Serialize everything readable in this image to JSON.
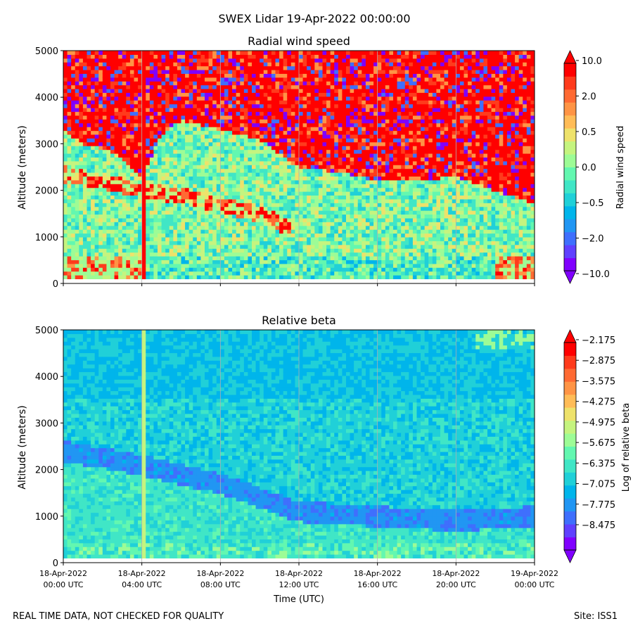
{
  "suptitle": "SWEX Lidar 19-Apr-2022 00:00:00",
  "footer_left": "REAL TIME DATA, NOT CHECKED FOR QUALITY",
  "footer_right": "Site: ISS1",
  "colors": {
    "rainbow": [
      "#8000ff",
      "#6040ff",
      "#3f6ffd",
      "#2196f3",
      "#00b5eb",
      "#20d0d8",
      "#40e6c6",
      "#63f7b0",
      "#9dfc96",
      "#c5f47f",
      "#eee26b",
      "#ffbc57",
      "#ff9445",
      "#ff6a33",
      "#ff3b1c",
      "#ff0000"
    ],
    "gridline": "#b0b0b0"
  },
  "chart_data": [
    {
      "type": "heatmap",
      "title": "Radial wind speed",
      "xlabel": "",
      "ylabel": "Altitude (meters)",
      "ylim": [
        0,
        5000
      ],
      "yticks": [
        "0",
        "1000",
        "2000",
        "3000",
        "4000",
        "5000"
      ],
      "xlim_hours": [
        0,
        24
      ],
      "xtick_hours": [
        0,
        4,
        8,
        12,
        16,
        20,
        24
      ],
      "xtick_labels_shown": false,
      "data_altitude_range": [
        100,
        5000
      ],
      "colorbar": {
        "label": "Radial wind speed",
        "tick_labels": [
          "10.0",
          "2.0",
          "0.5",
          "0.0",
          "−0.5",
          "−2.0",
          "−10.0"
        ],
        "extend": "both"
      },
      "features": {
        "cloud_base_profile": [
          {
            "hour": 0,
            "altitude": 3300
          },
          {
            "hour": 1,
            "altitude": 3000
          },
          {
            "hour": 2,
            "altitude": 2900
          },
          {
            "hour": 3,
            "altitude": 2700
          },
          {
            "hour": 4,
            "altitude": 2300
          },
          {
            "hour": 5,
            "altitude": 3200
          },
          {
            "hour": 6,
            "altitude": 3500
          },
          {
            "hour": 8,
            "altitude": 3300
          },
          {
            "hour": 10,
            "altitude": 3100
          },
          {
            "hour": 12,
            "altitude": 2500
          },
          {
            "hour": 14,
            "altitude": 2400
          },
          {
            "hour": 16,
            "altitude": 2200
          },
          {
            "hour": 18,
            "altitude": 2200
          },
          {
            "hour": 20,
            "altitude": 2300
          },
          {
            "hour": 22,
            "altitude": 2000
          },
          {
            "hour": 24,
            "altitude": 1700
          }
        ],
        "descending_layer": [
          {
            "hour": 0,
            "altitude": 2350
          },
          {
            "hour": 2,
            "altitude": 2200
          },
          {
            "hour": 4,
            "altitude": 2000
          },
          {
            "hour": 6,
            "altitude": 1900
          },
          {
            "hour": 8,
            "altitude": 1700
          },
          {
            "hour": 10,
            "altitude": 1500
          },
          {
            "hour": 11.5,
            "altitude": 1200
          }
        ],
        "event_column_hour": 4.1
      }
    },
    {
      "type": "heatmap",
      "title": "Relative beta",
      "xlabel": "Time (UTC)",
      "ylabel": "Altitude (meters)",
      "ylim": [
        0,
        5000
      ],
      "yticks": [
        "0",
        "1000",
        "2000",
        "3000",
        "4000",
        "5000"
      ],
      "xlim_hours": [
        0,
        24
      ],
      "xtick_hours": [
        0,
        4,
        8,
        12,
        16,
        20,
        24
      ],
      "xtick_labels": [
        [
          "18-Apr-2022",
          "00:00 UTC"
        ],
        [
          "18-Apr-2022",
          "04:00 UTC"
        ],
        [
          "18-Apr-2022",
          "08:00 UTC"
        ],
        [
          "18-Apr-2022",
          "12:00 UTC"
        ],
        [
          "18-Apr-2022",
          "16:00 UTC"
        ],
        [
          "18-Apr-2022",
          "20:00 UTC"
        ],
        [
          "19-Apr-2022",
          "00:00 UTC"
        ]
      ],
      "data_altitude_range": [
        100,
        5000
      ],
      "colorbar": {
        "label": "Log of relative beta",
        "tick_labels": [
          "−2.175",
          "−2.875",
          "−3.575",
          "−4.275",
          "−4.975",
          "−5.675",
          "−6.375",
          "−7.075",
          "−7.775",
          "−8.475"
        ],
        "extend": "both"
      },
      "features": {
        "descending_band": [
          {
            "hour": 0,
            "altitude": 2400
          },
          {
            "hour": 4,
            "altitude": 2100
          },
          {
            "hour": 8,
            "altitude": 1700
          },
          {
            "hour": 12,
            "altitude": 1100
          },
          {
            "hour": 16,
            "altitude": 1000
          },
          {
            "hour": 20,
            "altitude": 900
          },
          {
            "hour": 24,
            "altitude": 1000
          }
        ],
        "event_column_hour": 4.1
      }
    }
  ]
}
